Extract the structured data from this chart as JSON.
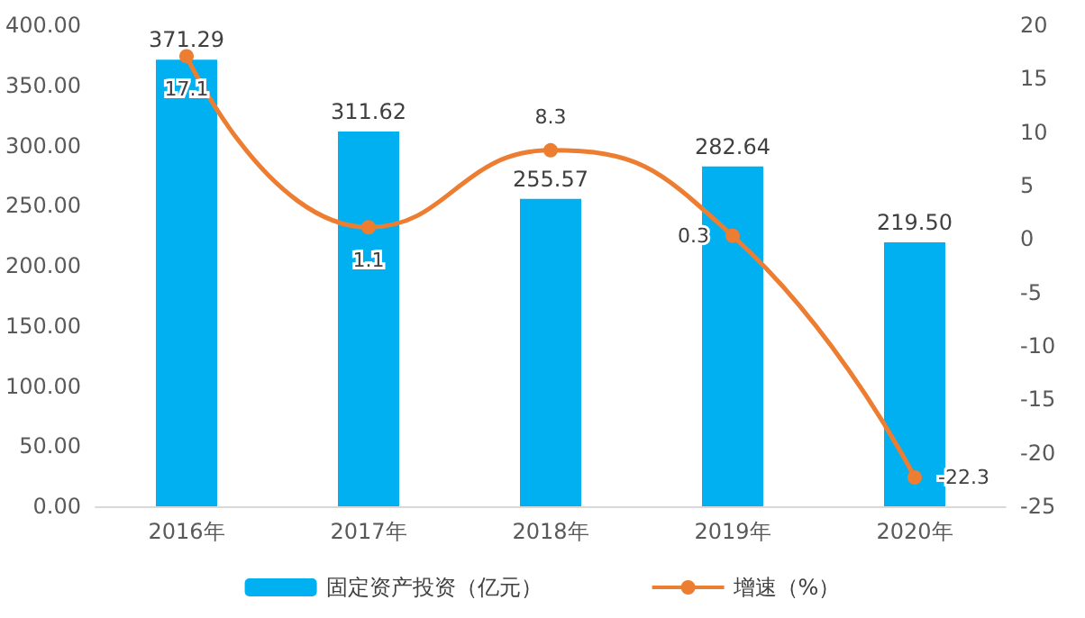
{
  "chart_data": {
    "type": "bar",
    "categories": [
      "2016年",
      "2017年",
      "2018年",
      "2019年",
      "2020年"
    ],
    "series": [
      {
        "name": "固定资产投资（亿元）",
        "color": "#00b0f0",
        "values": [
          371.29,
          311.62,
          255.57,
          282.64,
          219.5
        ],
        "value_labels": [
          "371.29",
          "311.62",
          "255.57",
          "282.64",
          "219.50"
        ]
      },
      {
        "name": "增速（%）",
        "type": "line",
        "axis": "y2",
        "color": "#ed7d31",
        "values": [
          17.1,
          1.1,
          8.3,
          0.3,
          -22.3
        ]
      }
    ],
    "ylim": [
      0,
      400
    ],
    "yticks": [
      {
        "value": 0,
        "label": "0.00"
      },
      {
        "value": 50,
        "label": "50.00"
      },
      {
        "value": 100,
        "label": "100.00"
      },
      {
        "value": 150,
        "label": "150.00"
      },
      {
        "value": 200,
        "label": "200.00"
      },
      {
        "value": 250,
        "label": "250.00"
      },
      {
        "value": 300,
        "label": "300.00"
      },
      {
        "value": 350,
        "label": "350.00"
      },
      {
        "value": 400,
        "label": "400.00"
      }
    ],
    "y2lim": [
      -25,
      20
    ],
    "y2ticks": [
      -25,
      -20,
      -15,
      -10,
      -5,
      0,
      5,
      10,
      15,
      20
    ],
    "data_labels": true,
    "grid": false,
    "legend": "bottom",
    "marker": "circle",
    "line_style": "solid"
  }
}
